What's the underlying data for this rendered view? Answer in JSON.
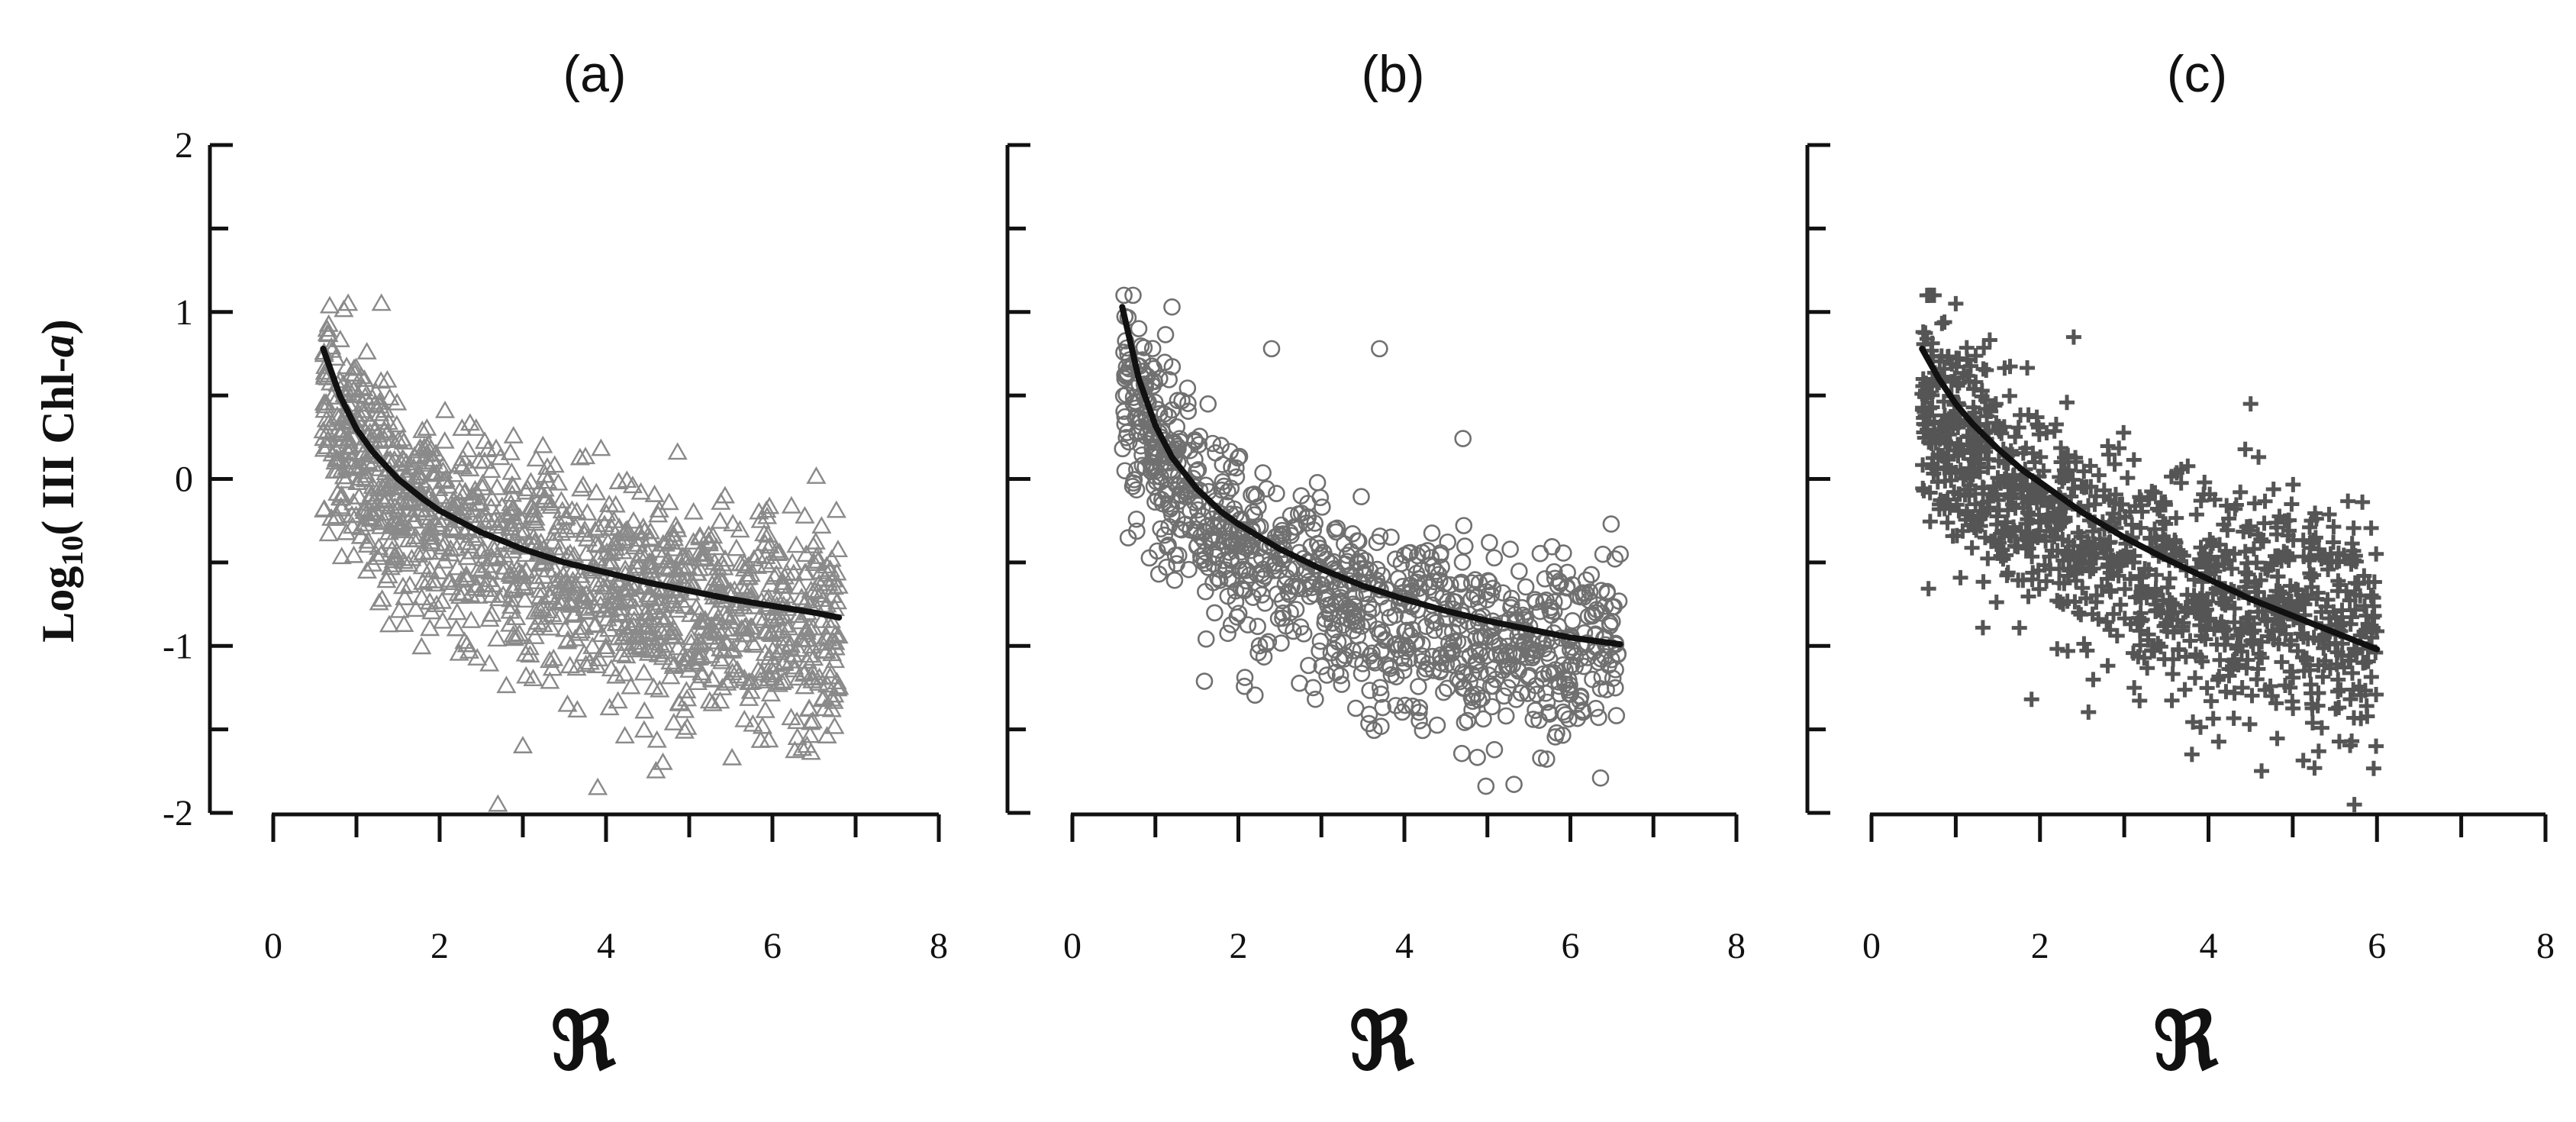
{
  "figure": {
    "ylabel_prefix": "Log",
    "ylabel_sub": "10",
    "ylabel_body": "( ",
    "ylabel_mid": "III",
    "ylabel_text": " Chl-",
    "ylabel_italic": "a",
    "ylabel_close": ")"
  },
  "chart_data": [
    {
      "type": "scatter",
      "title": "(a)",
      "xlabel": "ℜ",
      "xlim": [
        0,
        8
      ],
      "ylim": [
        -2,
        2
      ],
      "xticks": [
        0,
        2,
        4,
        6,
        8
      ],
      "yticks": [
        -2,
        -1,
        0,
        1,
        2
      ],
      "marker": "triangle",
      "color": "#8a8a8a",
      "points_shown": 1300,
      "series": [
        {
          "kind": "scatter",
          "trend": [
            [
              0.6,
              0.45
            ],
            [
              1.0,
              0.15
            ],
            [
              1.5,
              -0.1
            ],
            [
              2.0,
              -0.3
            ],
            [
              2.5,
              -0.42
            ],
            [
              3.0,
              -0.5
            ],
            [
              3.5,
              -0.58
            ],
            [
              4.0,
              -0.65
            ],
            [
              4.5,
              -0.72
            ],
            [
              5.0,
              -0.78
            ],
            [
              5.5,
              -0.82
            ],
            [
              6.0,
              -0.86
            ],
            [
              6.5,
              -0.9
            ]
          ],
          "spread": 0.33,
          "x_range": [
            0.6,
            6.8
          ],
          "notable_points": [
            [
              0.9,
              1.05
            ],
            [
              1.3,
              1.05
            ],
            [
              2.7,
              -1.95
            ],
            [
              3.0,
              -1.6
            ],
            [
              3.9,
              -1.85
            ],
            [
              4.6,
              -1.75
            ],
            [
              6.3,
              -1.55
            ],
            [
              6.8,
              -1.25
            ]
          ]
        },
        {
          "kind": "line",
          "x": [
            0.6,
            0.8,
            1.0,
            1.2,
            1.5,
            1.8,
            2.0,
            2.5,
            3.0,
            3.5,
            4.0,
            4.5,
            5.0,
            5.5,
            6.0,
            6.5,
            6.8
          ],
          "y": [
            0.78,
            0.5,
            0.3,
            0.16,
            0.0,
            -0.12,
            -0.19,
            -0.32,
            -0.42,
            -0.5,
            -0.56,
            -0.62,
            -0.67,
            -0.72,
            -0.76,
            -0.8,
            -0.83
          ]
        }
      ]
    },
    {
      "type": "scatter",
      "title": "(b)",
      "xlabel": "ℜ",
      "xlim": [
        0,
        8
      ],
      "ylim": [
        -2,
        2
      ],
      "xticks": [
        0,
        2,
        4,
        6,
        8
      ],
      "yticks": [
        -2,
        -1,
        0,
        1,
        2
      ],
      "marker": "circle",
      "color": "#707070",
      "points_shown": 1000,
      "series": [
        {
          "kind": "scatter",
          "trend": [
            [
              0.6,
              0.6
            ],
            [
              1.0,
              0.2
            ],
            [
              1.5,
              -0.15
            ],
            [
              2.0,
              -0.38
            ],
            [
              2.5,
              -0.52
            ],
            [
              3.0,
              -0.65
            ],
            [
              3.5,
              -0.75
            ],
            [
              4.0,
              -0.85
            ],
            [
              4.5,
              -0.92
            ],
            [
              5.0,
              -0.98
            ],
            [
              5.5,
              -1.02
            ],
            [
              6.0,
              -1.05
            ],
            [
              6.5,
              -1.05
            ]
          ],
          "spread": 0.3,
          "x_range": [
            0.6,
            6.6
          ],
          "notable_points": [
            [
              1.2,
              1.03
            ],
            [
              0.8,
              0.9
            ],
            [
              2.4,
              0.78
            ],
            [
              3.7,
              0.78
            ],
            [
              2.9,
              -1.25
            ],
            [
              5.2,
              -1.3
            ],
            [
              6.6,
              -0.45
            ]
          ]
        },
        {
          "kind": "line",
          "x": [
            0.6,
            0.8,
            1.0,
            1.2,
            1.5,
            1.8,
            2.0,
            2.5,
            3.0,
            3.5,
            4.0,
            4.5,
            5.0,
            5.5,
            6.0,
            6.6
          ],
          "y": [
            1.03,
            0.6,
            0.32,
            0.13,
            -0.06,
            -0.2,
            -0.27,
            -0.42,
            -0.54,
            -0.64,
            -0.72,
            -0.79,
            -0.85,
            -0.9,
            -0.95,
            -0.99
          ]
        }
      ]
    },
    {
      "type": "scatter",
      "title": "(c)",
      "xlabel": "ℜ",
      "xlim": [
        0,
        8
      ],
      "ylim": [
        -2,
        2
      ],
      "xticks": [
        0,
        2,
        4,
        6,
        8
      ],
      "yticks": [
        -2,
        -1,
        0,
        1,
        2
      ],
      "marker": "plus",
      "color": "#555555",
      "points_shown": 1100,
      "series": [
        {
          "kind": "scatter",
          "trend": [
            [
              0.6,
              0.45
            ],
            [
              1.0,
              0.25
            ],
            [
              1.5,
              0.0
            ],
            [
              2.0,
              -0.2
            ],
            [
              2.5,
              -0.35
            ],
            [
              3.0,
              -0.5
            ],
            [
              3.5,
              -0.6
            ],
            [
              4.0,
              -0.7
            ],
            [
              4.5,
              -0.78
            ],
            [
              5.0,
              -0.85
            ],
            [
              5.5,
              -0.9
            ],
            [
              6.0,
              -0.95
            ]
          ],
          "spread": 0.35,
          "x_range": [
            0.6,
            6.0
          ],
          "notable_points": [
            [
              0.7,
              1.1
            ],
            [
              1.0,
              1.05
            ],
            [
              2.4,
              0.85
            ],
            [
              4.5,
              0.45
            ],
            [
              1.9,
              -1.32
            ],
            [
              4.4,
              -1.25
            ],
            [
              5.8,
              -0.7
            ]
          ]
        },
        {
          "kind": "line",
          "x": [
            0.6,
            0.8,
            1.0,
            1.2,
            1.5,
            1.8,
            2.0,
            2.5,
            3.0,
            3.5,
            4.0,
            4.5,
            5.0,
            5.5,
            6.0
          ],
          "y": [
            0.78,
            0.6,
            0.45,
            0.33,
            0.18,
            0.05,
            -0.02,
            -0.2,
            -0.35,
            -0.48,
            -0.6,
            -0.72,
            -0.82,
            -0.92,
            -1.02
          ]
        }
      ]
    }
  ]
}
